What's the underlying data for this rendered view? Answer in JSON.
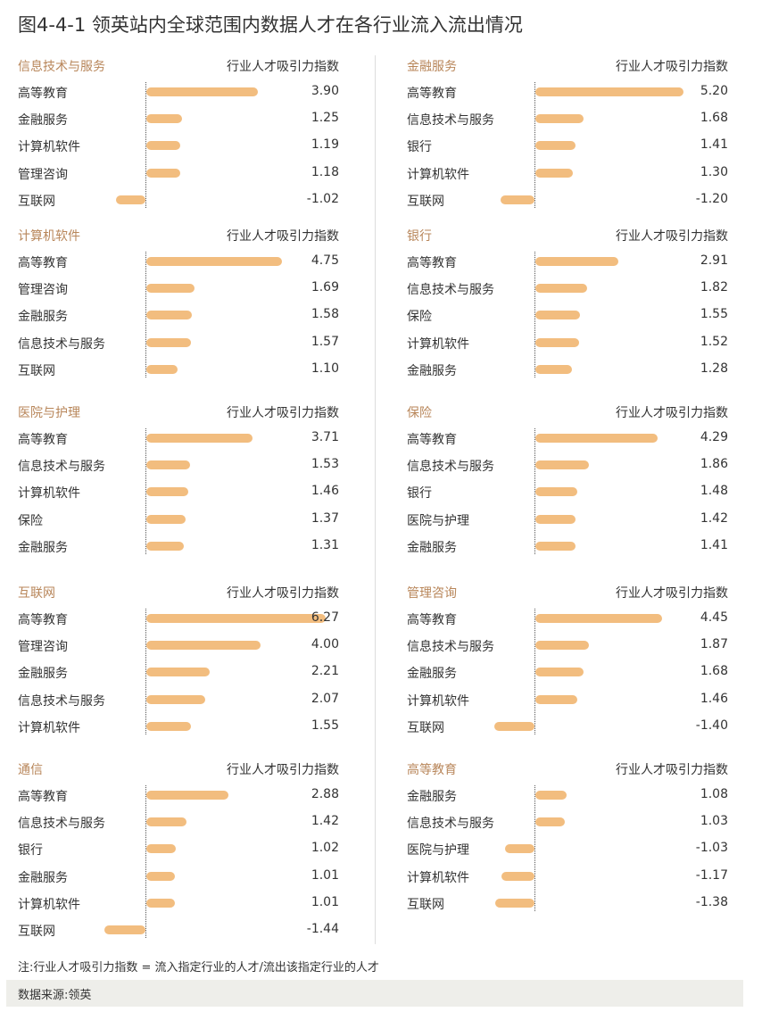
{
  "title": "图4-4-1 领英站内全球范围内数据人才在各行业流入流出情况",
  "metric_label": "行业人才吸引力指数",
  "note": "注:行业人才吸引力指数 = 流入指定行业的人才/流出该指定行业的人才",
  "source": "数据来源:领英",
  "colors": {
    "bar": "#f2bd7f",
    "panel_title": "#b8865a",
    "source_bg": "#eeeeea"
  },
  "chart_data": [
    {
      "type": "bar",
      "orientation": "horizontal",
      "title": "信息技术与服务",
      "xlabel": "行业人才吸引力指数",
      "categories": [
        "高等教育",
        "金融服务",
        "计算机软件",
        "管理咨询",
        "互联网"
      ],
      "values": [
        3.9,
        1.25,
        1.19,
        1.18,
        -1.02
      ]
    },
    {
      "type": "bar",
      "orientation": "horizontal",
      "title": "金融服务",
      "xlabel": "行业人才吸引力指数",
      "categories": [
        "高等教育",
        "信息技术与服务",
        "银行",
        "计算机软件",
        "互联网"
      ],
      "values": [
        5.2,
        1.68,
        1.41,
        1.3,
        -1.2
      ]
    },
    {
      "type": "bar",
      "orientation": "horizontal",
      "title": "计算机软件",
      "xlabel": "行业人才吸引力指数",
      "categories": [
        "高等教育",
        "管理咨询",
        "金融服务",
        "信息技术与服务",
        "互联网"
      ],
      "values": [
        4.75,
        1.69,
        1.58,
        1.57,
        1.1
      ]
    },
    {
      "type": "bar",
      "orientation": "horizontal",
      "title": "银行",
      "xlabel": "行业人才吸引力指数",
      "categories": [
        "高等教育",
        "信息技术与服务",
        "保险",
        "计算机软件",
        "金融服务"
      ],
      "values": [
        2.91,
        1.82,
        1.55,
        1.52,
        1.28
      ]
    },
    {
      "type": "bar",
      "orientation": "horizontal",
      "title": "医院与护理",
      "xlabel": "行业人才吸引力指数",
      "categories": [
        "高等教育",
        "信息技术与服务",
        "计算机软件",
        "保险",
        "金融服务"
      ],
      "values": [
        3.71,
        1.53,
        1.46,
        1.37,
        1.31
      ]
    },
    {
      "type": "bar",
      "orientation": "horizontal",
      "title": "保险",
      "xlabel": "行业人才吸引力指数",
      "categories": [
        "高等教育",
        "信息技术与服务",
        "银行",
        "医院与护理",
        "金融服务"
      ],
      "values": [
        4.29,
        1.86,
        1.48,
        1.42,
        1.41
      ]
    },
    {
      "type": "bar",
      "orientation": "horizontal",
      "title": "互联网",
      "xlabel": "行业人才吸引力指数",
      "categories": [
        "高等教育",
        "管理咨询",
        "金融服务",
        "信息技术与服务",
        "计算机软件"
      ],
      "values": [
        6.27,
        4.0,
        2.21,
        2.07,
        1.55
      ]
    },
    {
      "type": "bar",
      "orientation": "horizontal",
      "title": "管理咨询",
      "xlabel": "行业人才吸引力指数",
      "categories": [
        "高等教育",
        "信息技术与服务",
        "金融服务",
        "计算机软件",
        "互联网"
      ],
      "values": [
        4.45,
        1.87,
        1.68,
        1.46,
        -1.4
      ]
    },
    {
      "type": "bar",
      "orientation": "horizontal",
      "title": "通信",
      "xlabel": "行业人才吸引力指数",
      "categories": [
        "高等教育",
        "信息技术与服务",
        "银行",
        "金融服务",
        "计算机软件",
        "互联网"
      ],
      "values": [
        2.88,
        1.42,
        1.02,
        1.01,
        1.01,
        -1.44
      ]
    },
    {
      "type": "bar",
      "orientation": "horizontal",
      "title": "高等教育",
      "xlabel": "行业人才吸引力指数",
      "categories": [
        "金融服务",
        "信息技术与服务",
        "医院与护理",
        "计算机软件",
        "互联网"
      ],
      "values": [
        1.08,
        1.03,
        -1.03,
        -1.17,
        -1.38
      ]
    }
  ]
}
